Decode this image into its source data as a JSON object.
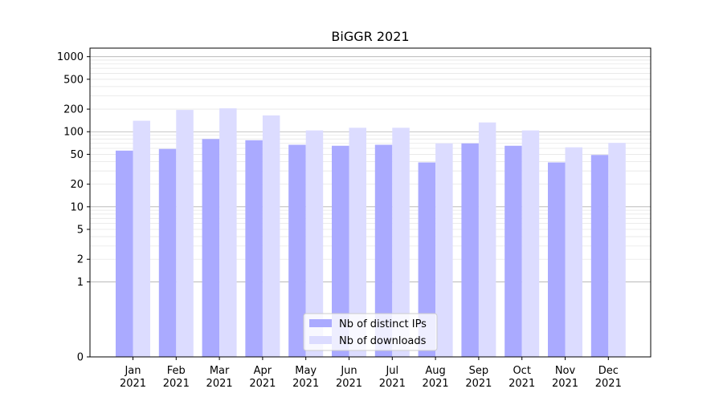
{
  "chart_data": {
    "type": "bar",
    "title": "BiGGR 2021",
    "xlabel": "",
    "ylabel": "",
    "yscale": "symlog",
    "ylim": [
      0,
      1300
    ],
    "yticks": [
      0,
      1,
      2,
      5,
      10,
      20,
      50,
      100,
      200,
      500,
      1000
    ],
    "grid": "y",
    "legend_position": "bottom-center",
    "categories": [
      "Jan\n2021",
      "Feb\n2021",
      "Mar\n2021",
      "Apr\n2021",
      "May\n2021",
      "Jun\n2021",
      "Jul\n2021",
      "Aug\n2021",
      "Sep\n2021",
      "Oct\n2021",
      "Nov\n2021",
      "Dec\n2021"
    ],
    "series": [
      {
        "name": "Nb of distinct IPs",
        "color": "#aaaaff",
        "values": [
          56,
          59,
          80,
          77,
          67,
          65,
          67,
          39,
          70,
          65,
          39,
          49
        ]
      },
      {
        "name": "Nb of downloads",
        "color": "#dcdcff",
        "values": [
          140,
          195,
          205,
          165,
          104,
          113,
          113,
          70,
          133,
          104,
          62,
          71
        ]
      }
    ]
  }
}
